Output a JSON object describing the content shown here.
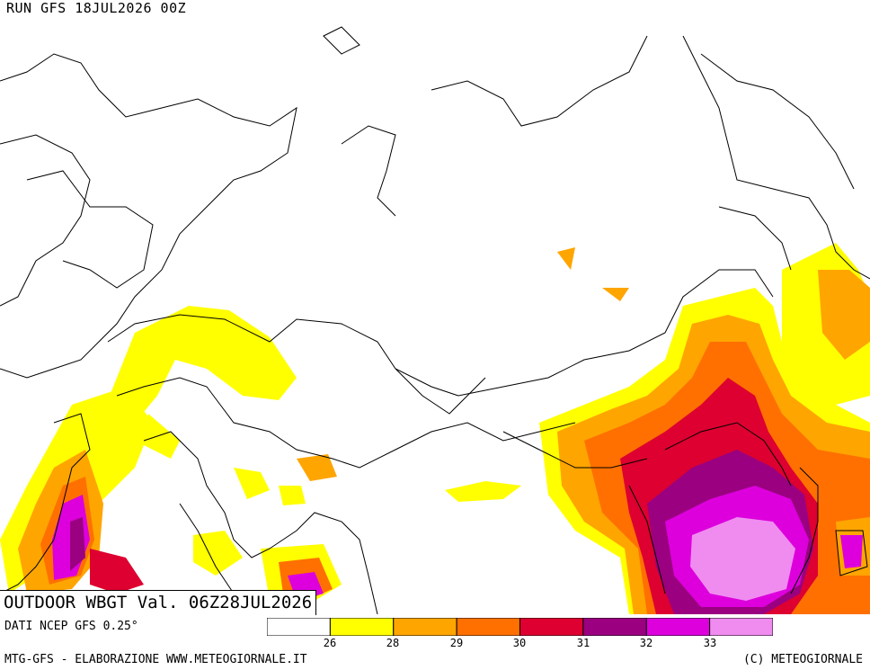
{
  "header": {
    "run": "RUN GFS 18JUL2026 00Z"
  },
  "map": {
    "title": "OUTDOOR WBGT Val. 06Z28JUL2026"
  },
  "footer": {
    "source": "DATI NCEP GFS 0.25°",
    "credit": "MTG-GFS - ELABORAZIONE WWW.METEOGIORNALE.IT",
    "copyright": "(C) METEOGIORNALE"
  },
  "legend": {
    "colors": [
      "#ffffff",
      "#ffff00",
      "#ffa500",
      "#ff7000",
      "#dd0030",
      "#9a0080",
      "#dd00dd",
      "#f08cf0"
    ],
    "ticks": [
      "26",
      "28",
      "29",
      "30",
      "31",
      "32",
      "33"
    ]
  }
}
